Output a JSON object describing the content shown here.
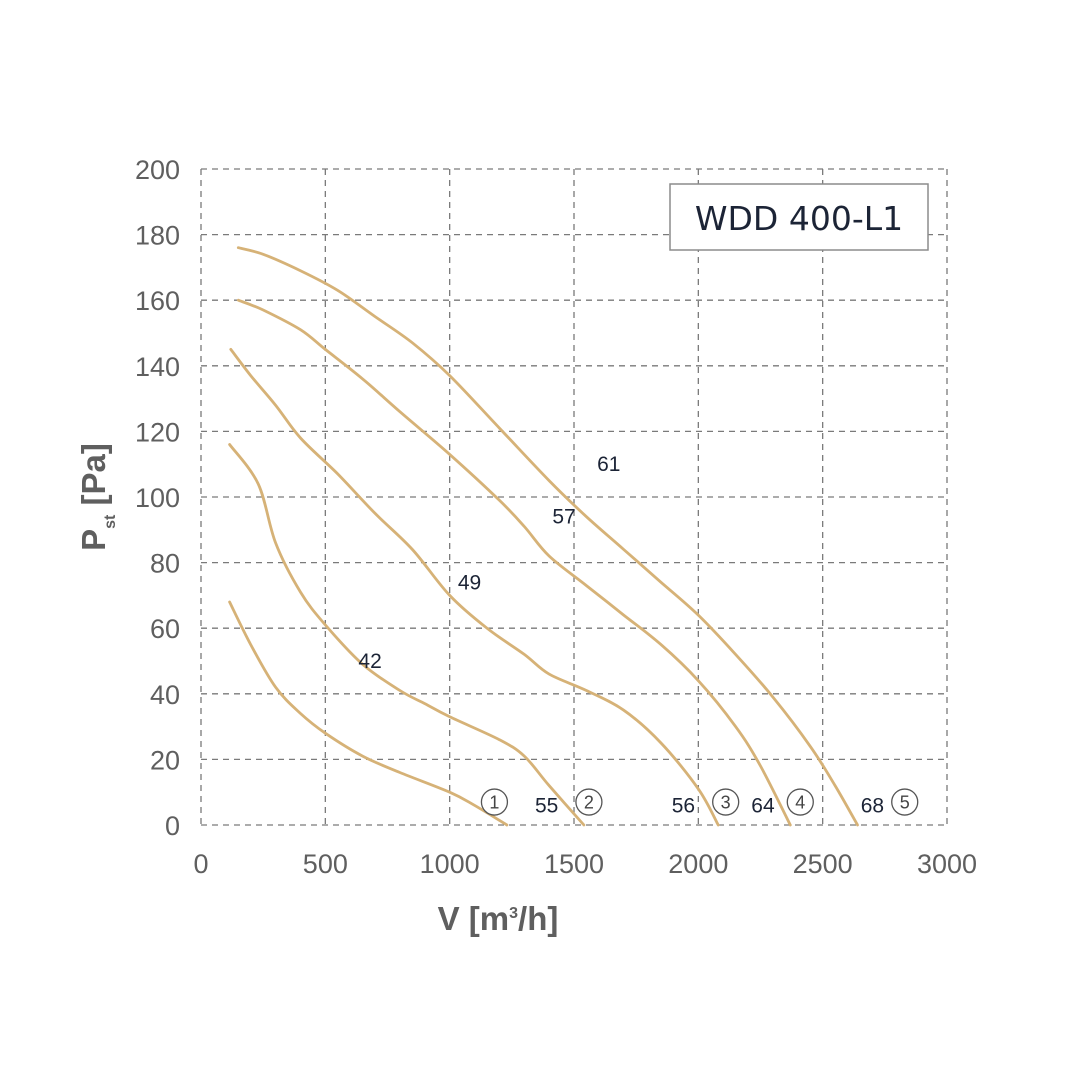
{
  "chart_data": {
    "type": "line",
    "title": "",
    "model_label": "WDD 400-L1",
    "xlabel": "V [m",
    "xlabel_sup": "3",
    "xlabel_end": "/h]",
    "ylabel": "P",
    "ylabel_sub": "st",
    "ylabel_end": " [Pa]",
    "xlim": [
      0,
      3000
    ],
    "ylim": [
      0,
      200
    ],
    "x_ticks": [
      "0",
      "500",
      "1000",
      "1500",
      "2000",
      "2500",
      "3000"
    ],
    "y_ticks": [
      "0",
      "20",
      "40",
      "60",
      "80",
      "100",
      "120",
      "140",
      "160",
      "180",
      "200"
    ],
    "grid": true,
    "line_color": "#d6b277",
    "series": [
      {
        "x": [
          115,
          200,
          300,
          400,
          500,
          650,
          800,
          1000,
          1100,
          1230
        ],
        "y": [
          68,
          55,
          42,
          34,
          28,
          21,
          16,
          10,
          6,
          0
        ]
      },
      {
        "x": [
          115,
          230,
          300,
          400,
          500,
          650,
          800,
          900,
          1000,
          1200,
          1300,
          1400,
          1540
        ],
        "y": [
          116,
          104,
          86,
          71,
          61,
          49,
          41,
          37,
          33,
          26,
          21,
          12,
          0
        ]
      },
      {
        "x": [
          120,
          200,
          300,
          400,
          550,
          700,
          850,
          1000,
          1150,
          1300,
          1400,
          1550,
          1700,
          1850,
          2000,
          2080
        ],
        "y": [
          145,
          137,
          128,
          118,
          107,
          95,
          84,
          70,
          60,
          52,
          46,
          41,
          35,
          25,
          11,
          0
        ]
      },
      {
        "x": [
          150,
          250,
          400,
          500,
          650,
          800,
          1000,
          1200,
          1300,
          1400,
          1550,
          1700,
          1850,
          2000,
          2150,
          2250,
          2370
        ],
        "y": [
          160,
          157,
          151,
          145,
          136,
          126,
          113,
          99,
          91,
          82,
          73,
          64,
          55,
          44,
          30,
          18,
          0
        ]
      },
      {
        "x": [
          150,
          250,
          400,
          550,
          700,
          850,
          1000,
          1200,
          1400,
          1550,
          1700,
          1850,
          2000,
          2150,
          2300,
          2450,
          2550,
          2640
        ],
        "y": [
          176,
          174,
          169,
          163,
          155,
          147,
          137,
          121,
          105,
          94,
          84,
          74,
          64,
          52,
          39,
          24,
          12,
          0
        ]
      }
    ],
    "annotations": [
      {
        "text": "42",
        "x": 680,
        "y": 50
      },
      {
        "text": "49",
        "x": 1080,
        "y": 74
      },
      {
        "text": "57",
        "x": 1460,
        "y": 94
      },
      {
        "text": "61",
        "x": 1640,
        "y": 110
      },
      {
        "text": "55",
        "x": 1390,
        "y": 6
      },
      {
        "text": "56",
        "x": 1940,
        "y": 6
      },
      {
        "text": "64",
        "x": 2260,
        "y": 6
      },
      {
        "text": "68",
        "x": 2700,
        "y": 6
      }
    ],
    "circled_markers": [
      {
        "text": "1",
        "x": 1180,
        "y": 7
      },
      {
        "text": "2",
        "x": 1560,
        "y": 7
      },
      {
        "text": "3",
        "x": 2110,
        "y": 7
      },
      {
        "text": "4",
        "x": 2410,
        "y": 7
      },
      {
        "text": "5",
        "x": 2830,
        "y": 7
      }
    ]
  }
}
